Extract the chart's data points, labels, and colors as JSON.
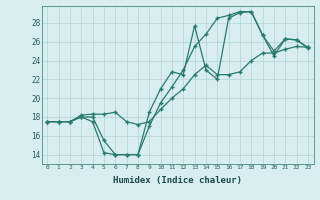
{
  "xlabel": "Humidex (Indice chaleur)",
  "bg_color": "#d8eeee",
  "grid_color": "#b0d4d0",
  "line_color": "#2a7a6a",
  "xlim": [
    -0.5,
    23.5
  ],
  "ylim": [
    13.0,
    29.8
  ],
  "xticks": [
    0,
    1,
    2,
    3,
    4,
    5,
    6,
    7,
    8,
    9,
    10,
    11,
    12,
    13,
    14,
    15,
    16,
    17,
    18,
    19,
    20,
    21,
    22,
    23
  ],
  "yticks": [
    14,
    16,
    18,
    20,
    22,
    24,
    26,
    28
  ],
  "curve1_x": [
    0,
    1,
    2,
    3,
    4,
    5,
    6,
    7,
    8,
    9,
    10,
    11,
    12,
    13,
    14,
    15,
    16,
    17,
    18,
    19,
    20,
    21,
    22,
    23
  ],
  "curve1_y": [
    17.5,
    17.5,
    17.5,
    18.0,
    17.5,
    14.2,
    14.0,
    14.0,
    14.0,
    18.5,
    21.0,
    22.8,
    22.5,
    27.7,
    23.0,
    22.0,
    28.5,
    29.1,
    29.2,
    26.7,
    24.5,
    26.3,
    26.2,
    25.3
  ],
  "curve2_x": [
    0,
    1,
    2,
    3,
    4,
    5,
    6,
    7,
    8,
    9,
    10,
    11,
    12,
    13,
    14,
    15,
    16,
    17,
    18,
    19,
    20,
    21,
    22,
    23
  ],
  "curve2_y": [
    17.5,
    17.5,
    17.5,
    18.2,
    18.3,
    18.3,
    18.5,
    17.5,
    17.2,
    17.5,
    18.8,
    20.0,
    21.0,
    22.5,
    23.5,
    22.5,
    22.5,
    22.8,
    24.0,
    24.8,
    24.8,
    25.2,
    25.5,
    25.4
  ],
  "curve3_x": [
    0,
    1,
    2,
    3,
    4,
    5,
    6,
    7,
    8,
    9,
    10,
    11,
    12,
    13,
    14,
    15,
    16,
    17,
    18,
    19,
    20,
    21,
    22,
    23
  ],
  "curve3_y": [
    17.5,
    17.5,
    17.5,
    18.0,
    18.0,
    15.5,
    14.0,
    14.0,
    14.0,
    17.0,
    19.5,
    21.2,
    23.0,
    25.5,
    26.8,
    28.5,
    28.8,
    29.2,
    29.2,
    26.7,
    25.0,
    26.3,
    26.2,
    25.4
  ]
}
